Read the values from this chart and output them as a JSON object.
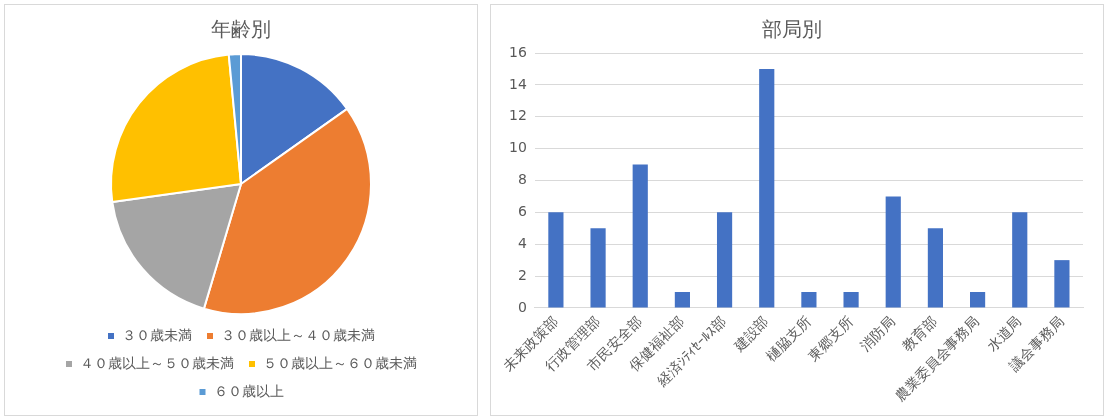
{
  "chart_data": [
    {
      "type": "pie",
      "title": "年齢別",
      "categories": [
        "３０歳未満",
        "３０歳以上～４０歳未満",
        "４０歳以上～５０歳未満",
        "５０歳以上～６０歳未満",
        "６０歳以上"
      ],
      "values": [
        15.2,
        39.4,
        18.2,
        25.7,
        1.5
      ],
      "colors": [
        "#4472c4",
        "#ed7d31",
        "#a5a5a5",
        "#ffc000",
        "#5b9bd5"
      ],
      "legend": "bottom"
    },
    {
      "type": "bar",
      "title": "部局別",
      "categories": [
        "未来政策部",
        "行政管理部",
        "市民安全部",
        "保健福祉部",
        "経済ｼﾃｨｾｰﾙｽ部",
        "建設部",
        "樋脇支所",
        "東郷支所",
        "消防局",
        "教育部",
        "農業委員会事務局",
        "水道局",
        "議会事務局"
      ],
      "values": [
        6,
        5,
        9,
        1,
        6,
        15,
        1,
        1,
        7,
        5,
        1,
        6,
        3
      ],
      "color": "#4472c4",
      "ylim": [
        0,
        16
      ],
      "yticks": [
        0,
        2,
        4,
        6,
        8,
        10,
        12,
        14,
        16
      ],
      "grid": "y"
    }
  ]
}
